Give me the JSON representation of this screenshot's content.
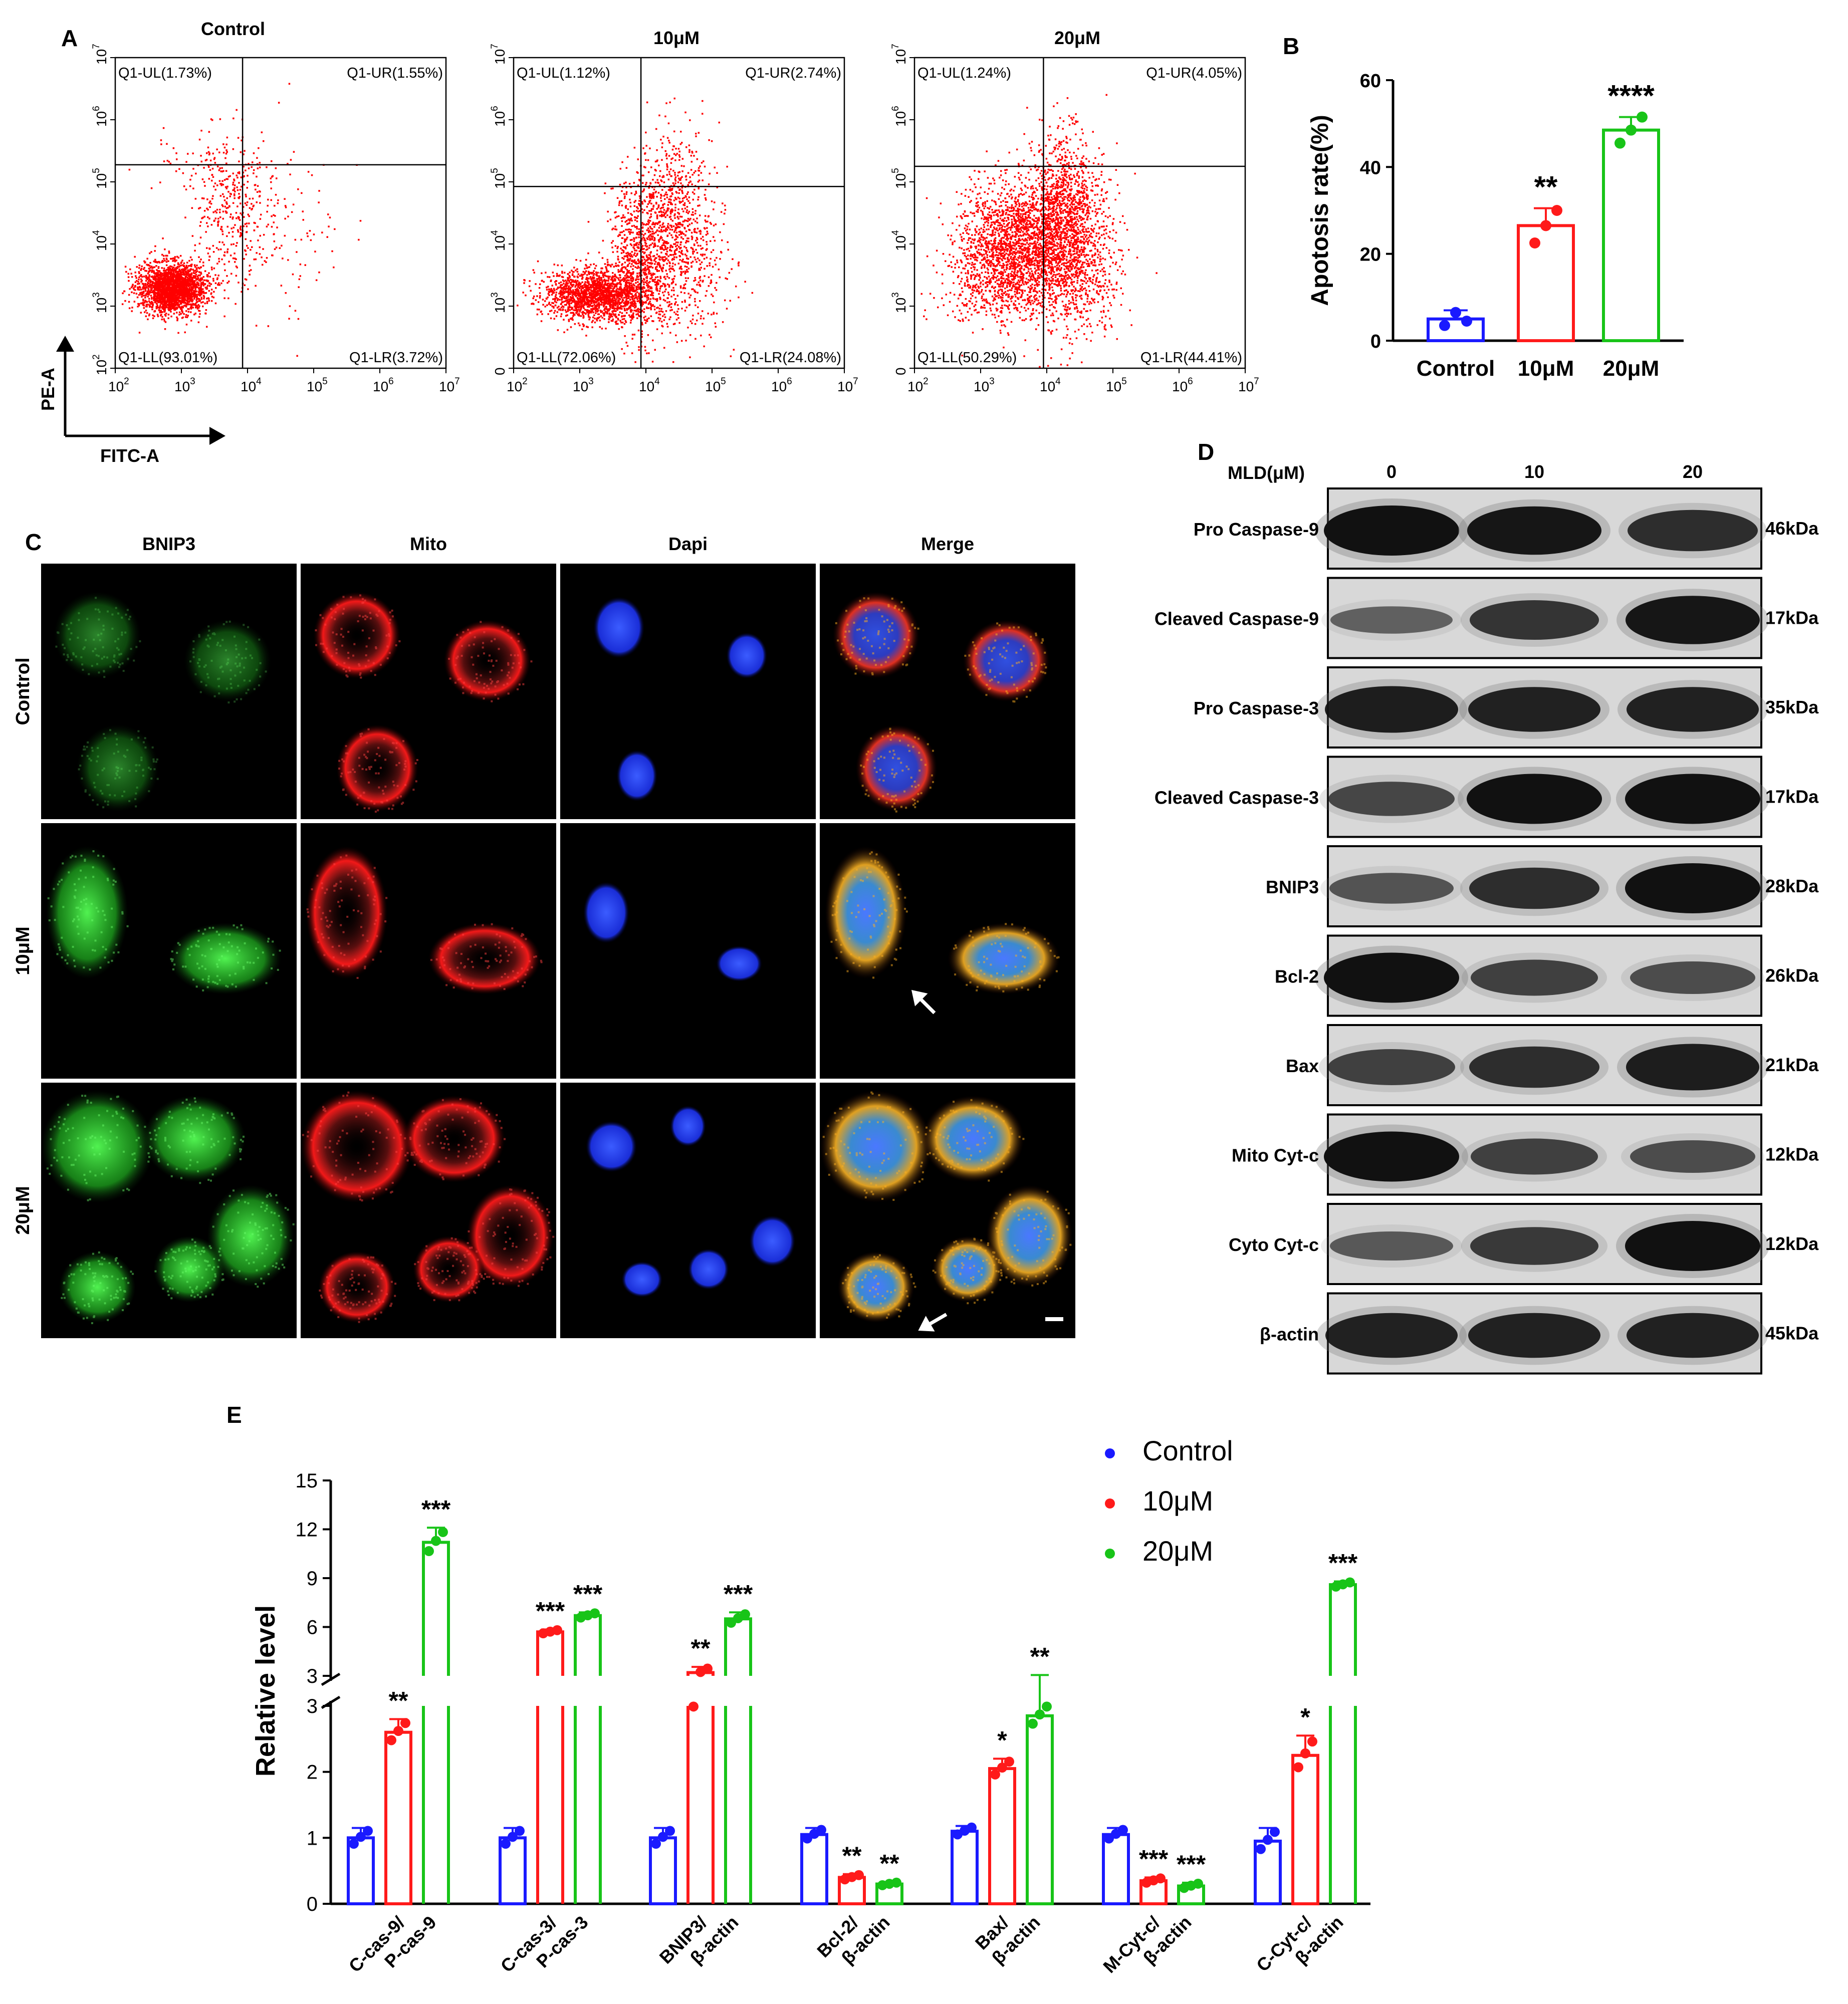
{
  "panels": {
    "A": "A",
    "B": "B",
    "C": "C",
    "D": "D",
    "E": "E"
  },
  "colors": {
    "control": "#1a1aff",
    "low": "#ff1a1a",
    "high": "#18c418",
    "dot_red": "#ff0000"
  },
  "panel_a": {
    "x_axis_name": "FITC-A",
    "y_axis_name": "PE-A",
    "x_ticks": [
      "10",
      "10",
      "10",
      "10",
      "10",
      "10"
    ],
    "x_tick_exponents": [
      "2",
      "3",
      "4",
      "5",
      "6",
      "7"
    ],
    "plots": [
      {
        "title": "Control",
        "y_ticks": [
          "10",
          "10",
          "10",
          "10",
          "10",
          "10"
        ],
        "y_tick_exponents": [
          "2",
          "3",
          "4",
          "5",
          "6",
          "7"
        ],
        "quadrants": {
          "ul": "Q1-UL(1.73%)",
          "ur": "Q1-UR(1.55%)",
          "ll": "Q1-LL(93.01%)",
          "lr": "Q1-LR(3.72%)"
        }
      },
      {
        "title": "10μM",
        "y_ticks": [
          "0",
          "10",
          "10",
          "10",
          "10",
          "10"
        ],
        "y_tick_exponents": [
          "",
          "3",
          "4",
          "5",
          "6",
          "7"
        ],
        "quadrants": {
          "ul": "Q1-UL(1.12%)",
          "ur": "Q1-UR(2.74%)",
          "ll": "Q1-LL(72.06%)",
          "lr": "Q1-LR(24.08%)"
        }
      },
      {
        "title": "20μM",
        "y_ticks": [
          "0",
          "10",
          "10",
          "10",
          "10",
          "10"
        ],
        "y_tick_exponents": [
          "",
          "3",
          "4",
          "5",
          "6",
          "7"
        ],
        "quadrants": {
          "ul": "Q1-UL(1.24%)",
          "ur": "Q1-UR(4.05%)",
          "ll": "Q1-LL(50.29%)",
          "lr": "Q1-LR(44.41%)"
        }
      }
    ]
  },
  "panel_c": {
    "columns": [
      "BNIP3",
      "Mito",
      "Dapi",
      "Merge"
    ],
    "rows": [
      "Control",
      "10μM",
      "20μM"
    ]
  },
  "panel_d": {
    "header": "MLD(μM)",
    "lanes": [
      "0",
      "10",
      "20"
    ],
    "bands": [
      {
        "name": "Pro Caspase-9",
        "size": "46kDa",
        "intensity": [
          1.0,
          0.95,
          0.75
        ]
      },
      {
        "name": "Cleaved Caspase-9",
        "size": "17kDa",
        "intensity": [
          0.35,
          0.7,
          0.95
        ]
      },
      {
        "name": "Pro Caspase-3",
        "size": "35kDa",
        "intensity": [
          0.9,
          0.85,
          0.85
        ]
      },
      {
        "name": "Cleaved Caspase-3",
        "size": "17kDa",
        "intensity": [
          0.55,
          1.0,
          1.0
        ]
      },
      {
        "name": "BNIP3",
        "size": "28kDa",
        "intensity": [
          0.45,
          0.75,
          1.0
        ]
      },
      {
        "name": "Bcl-2",
        "size": "26kDa",
        "intensity": [
          1.0,
          0.6,
          0.5
        ]
      },
      {
        "name": "Bax",
        "size": "21kDa",
        "intensity": [
          0.6,
          0.75,
          0.9
        ]
      },
      {
        "name": "Mito Cyt-c",
        "size": "12kDa",
        "intensity": [
          1.0,
          0.6,
          0.5
        ]
      },
      {
        "name": "Cyto Cyt-c",
        "size": "12kDa",
        "intensity": [
          0.4,
          0.65,
          1.0
        ]
      },
      {
        "name": "β-actin",
        "size": "45kDa",
        "intensity": [
          0.85,
          0.85,
          0.85
        ]
      }
    ]
  },
  "chart_data": [
    {
      "type": "bar",
      "ylabel": "Apotosis rate(%)",
      "categories": [
        "Control",
        "10μM",
        "20μM"
      ],
      "values": [
        5,
        26.5,
        48.5
      ],
      "errors": [
        2,
        4,
        3
      ],
      "points": [
        [
          3.5,
          6.5,
          4.5
        ],
        [
          22.5,
          26.5,
          30
        ],
        [
          45.5,
          48.5,
          51.5
        ]
      ],
      "significance": [
        "",
        "**",
        "****"
      ],
      "ylim": [
        0,
        60
      ],
      "yticks": [
        "0",
        "20",
        "40",
        "60"
      ]
    },
    {
      "type": "bar",
      "ylabel": "Relative level",
      "axis_break": [
        3,
        3
      ],
      "lower_ylim": [
        0,
        3
      ],
      "upper_ylim": [
        3,
        15
      ],
      "lower_yticks": [
        "0",
        "1",
        "2",
        "3"
      ],
      "upper_yticks": [
        "3",
        "6",
        "9",
        "12",
        "15"
      ],
      "categories": [
        "C-cas-9/ P-cas-9",
        "C-cas-3/ P-cas-3",
        "BNIP3/ β-actin",
        "Bcl-2/ β-actin",
        "Bax/ β-actin",
        "M-Cyt-c/ β-actin",
        "C-Cyt-c/ β-actin"
      ],
      "category_lines": [
        [
          "C-cas-9/",
          "P-cas-9"
        ],
        [
          "C-cas-3/",
          "P-cas-3"
        ],
        [
          "BNIP3/",
          "β-actin"
        ],
        [
          "Bcl-2/",
          "β-actin"
        ],
        [
          "Bax/",
          "β-actin"
        ],
        [
          "M-Cyt-c/",
          "β-actin"
        ],
        [
          "C-Cyt-c/",
          "β-actin"
        ]
      ],
      "legend": [
        "Control",
        "10μM",
        "20μM"
      ],
      "series": [
        {
          "name": "Control",
          "values": [
            1.0,
            1.0,
            1.0,
            1.05,
            1.1,
            1.05,
            0.95
          ],
          "errors": [
            0.15,
            0.15,
            0.15,
            0.1,
            0.08,
            0.1,
            0.2
          ],
          "significance": [
            "",
            "",
            "",
            "",
            "",
            "",
            ""
          ]
        },
        {
          "name": "10μM",
          "values": [
            2.6,
            5.7,
            3.2,
            0.4,
            2.05,
            0.35,
            2.25
          ],
          "errors": [
            0.2,
            0.15,
            0.35,
            0.05,
            0.15,
            0.05,
            0.3
          ],
          "significance": [
            "**",
            "***",
            "**",
            "**",
            "*",
            "***",
            "*"
          ]
        },
        {
          "name": "20μM",
          "values": [
            11.2,
            6.7,
            6.5,
            0.3,
            2.85,
            0.27,
            8.6
          ],
          "errors": [
            0.9,
            0.2,
            0.4,
            0.03,
            0.2,
            0.05,
            0.2
          ],
          "significance": [
            "***",
            "***",
            "***",
            "**",
            "**",
            "***",
            "***"
          ]
        }
      ]
    }
  ]
}
